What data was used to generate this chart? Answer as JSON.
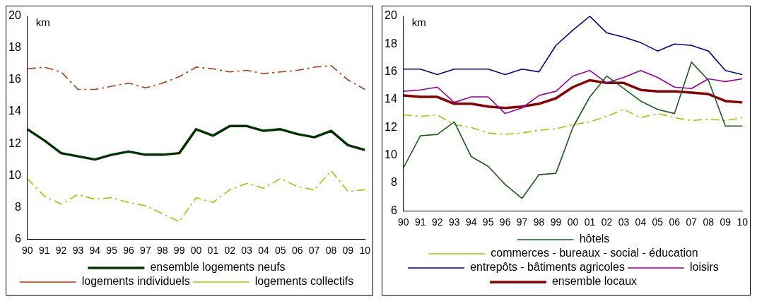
{
  "chart_data": [
    {
      "type": "line",
      "ylabel": "km",
      "categories": [
        "90",
        "91",
        "92",
        "93",
        "94",
        "95",
        "96",
        "97",
        "98",
        "99",
        "00",
        "01",
        "02",
        "03",
        "04",
        "05",
        "06",
        "07",
        "08",
        "09",
        "10"
      ],
      "ylim": [
        6,
        20
      ],
      "yticks": [
        6,
        8,
        10,
        12,
        14,
        16,
        18,
        20
      ],
      "legend": "bottom",
      "series": [
        {
          "name": "ensemble logements neufs",
          "color": "#003300",
          "line_style": "solid",
          "values": [
            12.9,
            12.2,
            11.4,
            11.2,
            11.0,
            11.3,
            11.5,
            11.3,
            11.3,
            11.4,
            12.9,
            12.5,
            13.1,
            13.1,
            12.8,
            12.9,
            12.6,
            12.4,
            12.8,
            11.9,
            11.6
          ]
        },
        {
          "name": "logements individuels",
          "color": "#b23c0a",
          "line_style": "dashed",
          "values": [
            16.7,
            16.8,
            16.5,
            15.4,
            15.4,
            15.6,
            15.8,
            15.5,
            15.8,
            16.2,
            16.8,
            16.7,
            16.5,
            16.6,
            16.4,
            16.5,
            16.6,
            16.8,
            16.9,
            16.0,
            15.4
          ]
        },
        {
          "name": "logements collectifs",
          "color": "#99cc00",
          "line_style": "dashed",
          "values": [
            9.8,
            8.7,
            8.2,
            8.8,
            8.5,
            8.6,
            8.3,
            8.1,
            7.6,
            7.1,
            8.6,
            8.3,
            9.1,
            9.5,
            9.2,
            9.8,
            9.3,
            9.1,
            10.3,
            9.0,
            9.1
          ]
        }
      ]
    },
    {
      "type": "line",
      "ylabel": "km",
      "categories": [
        "90",
        "91",
        "92",
        "93",
        "94",
        "95",
        "96",
        "97",
        "98",
        "99",
        "00",
        "01",
        "02",
        "03",
        "04",
        "05",
        "06",
        "07",
        "08",
        "09",
        "10"
      ],
      "ylim": [
        6,
        20
      ],
      "yticks": [
        6,
        8,
        10,
        12,
        14,
        16,
        18,
        20
      ],
      "legend": "bottom",
      "series": [
        {
          "name": "hôtels",
          "color": "#1a5c1a",
          "line_style": "solid",
          "values": [
            9.1,
            11.4,
            11.5,
            12.4,
            9.9,
            9.2,
            7.9,
            6.9,
            8.6,
            8.7,
            12.0,
            14.2,
            15.7,
            14.8,
            13.9,
            13.3,
            13.0,
            16.7,
            15.4,
            12.1,
            12.1
          ]
        },
        {
          "name": "commerces - bureaux - social - éducation",
          "color": "#99cc00",
          "line_style": "dashed",
          "values": [
            12.9,
            12.8,
            12.9,
            12.2,
            12.0,
            11.6,
            11.5,
            11.6,
            11.8,
            11.9,
            12.2,
            12.4,
            12.8,
            13.3,
            12.7,
            13.0,
            12.7,
            12.5,
            12.6,
            12.5,
            12.7
          ]
        },
        {
          "name": "entrepôts - bâtiments agricoles",
          "color": "#000099",
          "line_style": "solid",
          "values": [
            16.2,
            16.2,
            15.8,
            16.2,
            16.2,
            16.2,
            15.8,
            16.2,
            16.0,
            17.9,
            19.0,
            20.0,
            18.8,
            18.5,
            18.1,
            17.5,
            18.0,
            17.9,
            17.5,
            16.1,
            15.8
          ]
        },
        {
          "name": "loisirs",
          "color": "#990099",
          "line_style": "solid",
          "values": [
            14.6,
            14.7,
            14.9,
            13.8,
            14.2,
            14.2,
            13.0,
            13.4,
            14.3,
            14.6,
            15.7,
            16.1,
            15.2,
            15.6,
            16.1,
            15.6,
            14.9,
            14.8,
            15.5,
            15.3,
            15.5
          ]
        },
        {
          "name": "ensemble locaux",
          "color": "#8b0000",
          "line_style": "solid",
          "values": [
            14.3,
            14.2,
            14.2,
            13.7,
            13.7,
            13.5,
            13.4,
            13.5,
            13.7,
            14.1,
            14.9,
            15.4,
            15.2,
            15.2,
            14.7,
            14.6,
            14.6,
            14.5,
            14.4,
            13.9,
            13.8
          ]
        }
      ]
    }
  ]
}
